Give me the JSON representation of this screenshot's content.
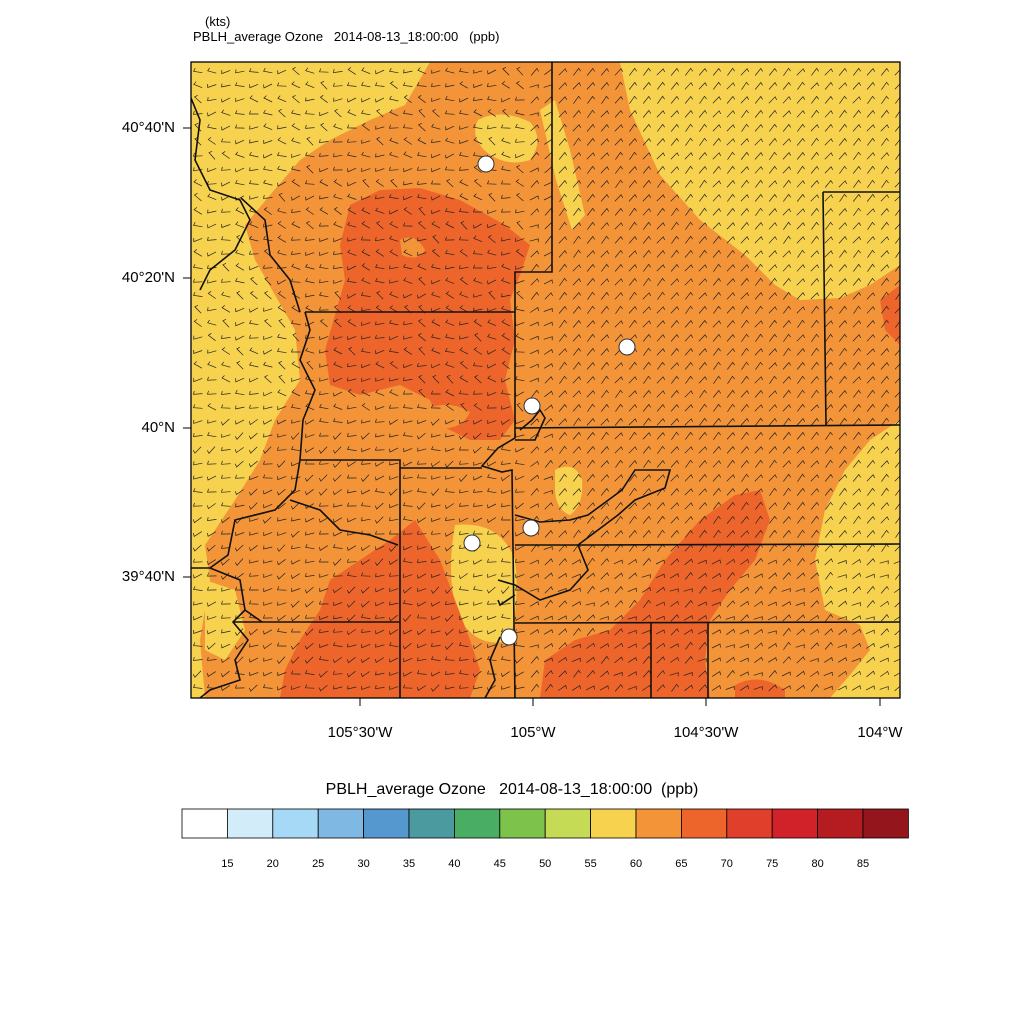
{
  "header": {
    "units": "(kts)",
    "title": "PBLH_average Ozone   2014-08-13_18:00:00   (ppb)"
  },
  "axes": {
    "lat_labels": [
      "40°40'N",
      "40°20'N",
      "40°N",
      "39°40'N"
    ],
    "lon_labels": [
      "105°30'W",
      "105°W",
      "104°30'W",
      "104°W"
    ]
  },
  "labelbar": {
    "title": "PBLH_average Ozone   2014-08-13_18:00:00  (ppb)",
    "colors": [
      "#ffffff",
      "#d2ecf9",
      "#a6d9f5",
      "#7fb8e3",
      "#5597cf",
      "#4a9aa0",
      "#4aad64",
      "#7cc24b",
      "#c6db55",
      "#f7d24f",
      "#f39439",
      "#ee652c",
      "#e03f2c",
      "#d12129",
      "#b41c22",
      "#94161c"
    ],
    "labels": [
      "15",
      "20",
      "25",
      "30",
      "35",
      "40",
      "45",
      "50",
      "55",
      "60",
      "65",
      "70",
      "75",
      "80",
      "85"
    ]
  },
  "map_colors": {
    "yellow": "#f7d24f",
    "orange": "#f39439",
    "red_orange": "#ee652c"
  }
}
